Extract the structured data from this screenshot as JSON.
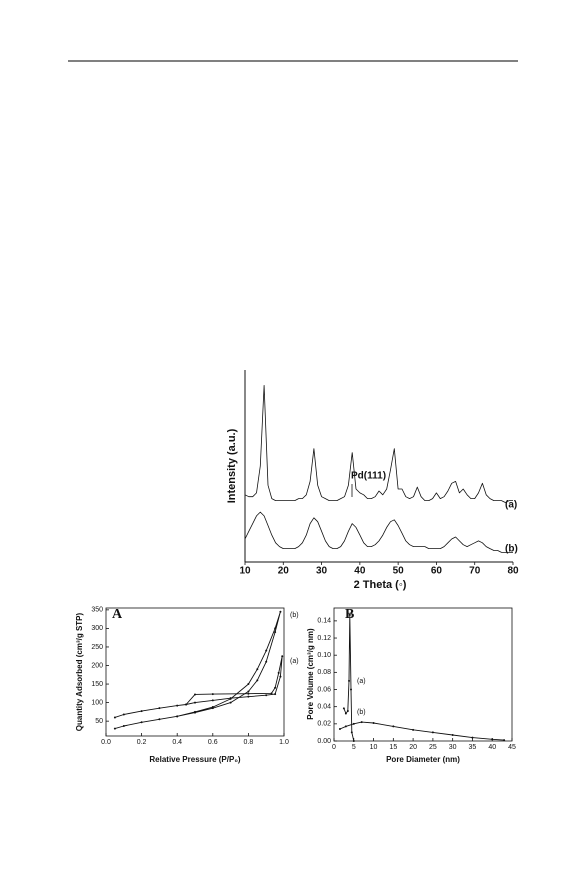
{
  "chart_data": [
    {
      "type": "line",
      "xlabel": "2 Theta (◦)",
      "ylabel": "Intensity (a.u.)",
      "annotations": [
        "Pd(111)"
      ],
      "xlim": [
        10,
        80
      ],
      "xticks": [
        10,
        20,
        30,
        40,
        50,
        60,
        70,
        80
      ],
      "ylim": [
        0,
        100
      ],
      "x": [
        10,
        11,
        12,
        13,
        14,
        15,
        16,
        17,
        18,
        19,
        20,
        21,
        22,
        23,
        24,
        25,
        26,
        27,
        28,
        29,
        30,
        31,
        32,
        33,
        34,
        35,
        36,
        37,
        38,
        39,
        40,
        41,
        42,
        43,
        44,
        45,
        46,
        47,
        48,
        49,
        50,
        51,
        52,
        53,
        54,
        55,
        56,
        57,
        58,
        59,
        60,
        61,
        62,
        63,
        64,
        65,
        66,
        67,
        68,
        69,
        70,
        71,
        72,
        73,
        74,
        75,
        76,
        77,
        78,
        79,
        80
      ],
      "series": [
        {
          "name": "(a)",
          "color": "#111",
          "values": [
            35,
            34,
            34,
            36,
            50,
            92,
            40,
            33,
            32,
            32,
            32,
            32,
            32,
            32,
            33,
            33,
            35,
            42,
            59,
            40,
            34,
            33,
            32,
            32,
            32,
            33,
            34,
            40,
            57,
            38,
            36,
            35,
            33,
            33,
            34,
            37,
            35,
            38,
            48,
            59,
            38,
            38,
            34,
            33,
            34,
            39,
            34,
            32,
            32,
            33,
            36,
            33,
            34,
            37,
            41,
            42,
            36,
            38,
            35,
            33,
            33,
            36,
            41,
            35,
            33,
            32,
            32,
            32,
            31,
            32,
            32
          ]
        },
        {
          "name": "(b)",
          "color": "#111",
          "values": [
            12,
            16,
            20,
            24,
            26,
            24,
            19,
            14,
            10,
            8,
            7,
            7,
            7,
            7,
            8,
            10,
            14,
            20,
            23,
            21,
            16,
            11,
            8,
            7,
            7,
            8,
            11,
            16,
            20,
            18,
            14,
            10,
            8,
            8,
            9,
            11,
            14,
            18,
            21,
            22,
            19,
            15,
            11,
            9,
            8,
            8,
            8,
            8,
            7,
            7,
            7,
            7,
            8,
            10,
            12,
            13,
            11,
            9,
            8,
            9,
            10,
            11,
            10,
            8,
            7,
            6,
            6,
            5,
            5,
            5,
            5
          ]
        }
      ]
    },
    {
      "type": "line",
      "panel_label": "A",
      "xlabel": "Relative Pressure (P/P₀)",
      "ylabel": "Quantity Adsorbed (cm³/g STP)",
      "xlim": [
        0,
        1
      ],
      "xticks": [
        {
          "value": 0,
          "label": "0.0"
        },
        0.2,
        0.4,
        0.6,
        0.8,
        {
          "value": 1,
          "label": "1.0"
        }
      ],
      "ylim": [
        10,
        355
      ],
      "yticks": [
        50,
        100,
        150,
        200,
        250,
        300,
        350
      ],
      "series": [
        {
          "name": "(a)",
          "color": "#111",
          "x": [
            0.05,
            0.1,
            0.2,
            0.3,
            0.4,
            0.45,
            0.5,
            0.6,
            0.7,
            0.8,
            0.9,
            0.95,
            0.98,
            0.99,
            0.97,
            0.95,
            0.93,
            0.8,
            0.6,
            0.5,
            0.45
          ],
          "values": [
            60,
            68,
            77,
            85,
            92,
            95,
            100,
            106,
            112,
            116,
            120,
            123,
            170,
            225,
            180,
            140,
            125,
            124,
            123,
            122,
            95
          ]
        },
        {
          "name": "(b)",
          "color": "#111",
          "x": [
            0.05,
            0.1,
            0.2,
            0.3,
            0.4,
            0.5,
            0.6,
            0.7,
            0.8,
            0.85,
            0.9,
            0.95,
            0.98,
            0.95,
            0.9,
            0.85,
            0.8,
            0.7,
            0.6,
            0.5,
            0.4
          ],
          "values": [
            30,
            37,
            47,
            55,
            63,
            73,
            85,
            100,
            130,
            160,
            210,
            290,
            345,
            300,
            240,
            190,
            150,
            110,
            88,
            75,
            63
          ]
        }
      ]
    },
    {
      "type": "line",
      "panel_label": "B",
      "xlabel": "Pore Diameter (nm)",
      "ylabel": "Pore Volume (cm³/g nm)",
      "xlim": [
        0,
        45
      ],
      "xticks": [
        0,
        5,
        10,
        15,
        20,
        25,
        30,
        35,
        40,
        45
      ],
      "ylim": [
        0,
        0.155
      ],
      "yticks": [
        {
          "value": 0,
          "label": "0.00"
        },
        {
          "value": 0.02,
          "label": "0.02"
        },
        {
          "value": 0.04,
          "label": "0.04"
        },
        {
          "value": 0.06,
          "label": "0.06"
        },
        {
          "value": 0.08,
          "label": "0.08"
        },
        {
          "value": 0.1,
          "label": "0.10"
        },
        {
          "value": 0.12,
          "label": "0.12"
        },
        {
          "value": 0.14,
          "label": "0.14"
        }
      ],
      "series": [
        {
          "name": "(a)",
          "color": "#111",
          "x": [
            2.5,
            3,
            3.5,
            3.8,
            4,
            4.3,
            4.5,
            5
          ],
          "values": [
            0.038,
            0.032,
            0.035,
            0.07,
            0.147,
            0.06,
            0.01,
            0
          ]
        },
        {
          "name": "(b)",
          "color": "#111",
          "x": [
            1.5,
            3,
            5,
            7,
            10,
            15,
            20,
            25,
            30,
            35,
            40,
            43
          ],
          "values": [
            0.014,
            0.017,
            0.02,
            0.022,
            0.021,
            0.017,
            0.013,
            0.01,
            0.007,
            0.004,
            0.002,
            0.001
          ]
        }
      ]
    }
  ]
}
